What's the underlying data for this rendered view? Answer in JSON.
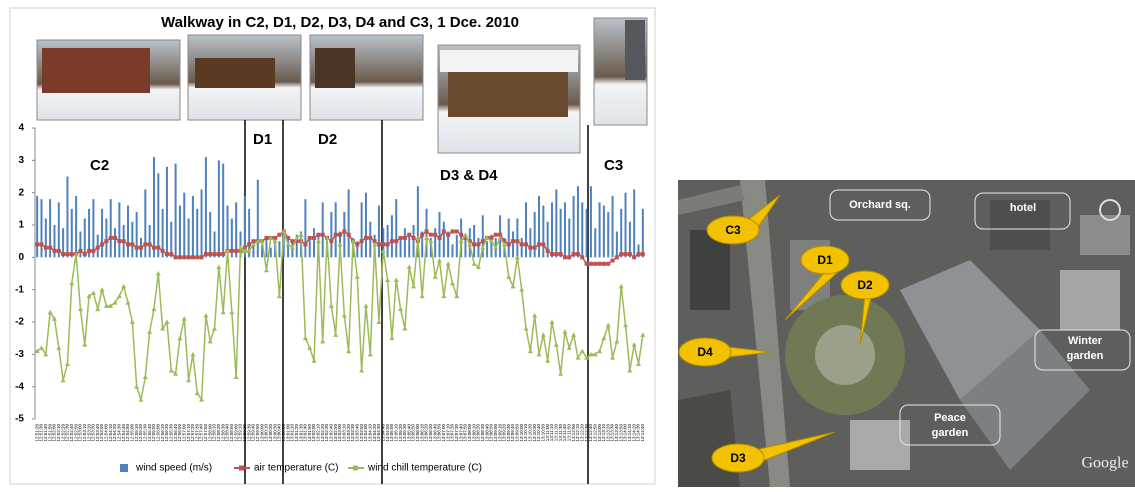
{
  "chart_data": {
    "type": "combo",
    "title": "Walkway in C2, D1, D2, D3, D4 and C3, 1 Dce. 2010",
    "annotations": [
      "C2",
      "D1",
      "D2",
      "D3 & D4",
      "C3"
    ],
    "categories": [
      "12:51:20",
      "12:51:30",
      "12:51:40",
      "12:51:50",
      "12:52:00",
      "12:52:10",
      "12:52:20",
      "12:52:30",
      "12:52:40",
      "12:52:50",
      "12:53:00",
      "12:53:10",
      "12:53:20",
      "12:53:30",
      "12:53:40",
      "12:53:50",
      "12:54:00",
      "12:54:10",
      "12:54:20",
      "12:54:30",
      "12:54:40",
      "12:54:50",
      "12:55:00",
      "12:55:10",
      "12:55:20",
      "12:55:30",
      "12:55:40",
      "12:55:50",
      "12:56:00",
      "12:56:10",
      "12:56:20",
      "12:56:30",
      "12:56:40",
      "12:56:50",
      "12:57:00",
      "12:57:10",
      "12:57:20",
      "12:57:30",
      "12:57:40",
      "12:57:50",
      "12:58:00",
      "12:58:10",
      "12:58:20",
      "12:58:30",
      "12:58:40",
      "12:58:50",
      "12:59:00",
      "12:59:10",
      "12:59:20",
      "12:59:30",
      "12:59:40",
      "12:59:50",
      "13:00:00",
      "13:00:10",
      "13:00:20",
      "13:00:30",
      "13:00:40",
      "13:00:50",
      "13:01:00",
      "13:01:10",
      "13:01:20",
      "13:01:30",
      "13:01:40",
      "13:01:50",
      "13:02:00",
      "13:02:10",
      "13:02:20",
      "13:02:30",
      "13:02:40",
      "13:02:50",
      "13:03:00",
      "13:03:10",
      "13:03:20",
      "13:03:30",
      "13:03:40",
      "13:03:50",
      "13:04:00",
      "13:04:10",
      "13:04:20",
      "13:04:30",
      "13:04:40",
      "13:04:50",
      "13:05:00",
      "13:05:10",
      "13:05:20",
      "13:05:30",
      "13:05:40",
      "13:05:50",
      "13:06:00",
      "13:06:10",
      "13:06:20",
      "13:06:30",
      "13:06:40",
      "13:06:50",
      "13:07:00",
      "13:07:10",
      "13:07:20",
      "13:07:30",
      "13:07:40",
      "13:07:50",
      "13:08:00",
      "13:08:10",
      "13:08:20",
      "13:08:30",
      "13:08:40",
      "13:08:50",
      "13:09:00",
      "13:09:10",
      "13:09:20",
      "13:09:30",
      "13:09:40",
      "13:09:50",
      "13:10:00",
      "13:10:10",
      "13:10:20",
      "13:10:30",
      "13:10:40",
      "13:10:50",
      "13:11:00",
      "13:11:10",
      "13:11:20",
      "13:11:30",
      "13:11:40",
      "13:11:50",
      "13:12:00",
      "13:12:10",
      "13:12:20",
      "13:12:30",
      "13:12:40",
      "13:12:50",
      "13:13:00",
      "13:13:10",
      "13:13:20",
      "13:13:30",
      "13:13:40",
      "13:13:50",
      "13:14:00",
      "13:14:10",
      "13:14:20",
      "13:14:30",
      "13:14:40"
    ],
    "series": [
      {
        "name": "wind speed (m/s)",
        "type": "bar",
        "color": "#4f81bd",
        "values": [
          1.9,
          1.8,
          1.2,
          1.8,
          1.0,
          1.7,
          0.9,
          2.5,
          1.5,
          1.9,
          0.8,
          1.2,
          1.5,
          1.8,
          0.7,
          1.5,
          1.2,
          1.8,
          0.9,
          1.7,
          1.0,
          1.6,
          1.1,
          1.4,
          0.6,
          2.1,
          1.0,
          3.1,
          2.6,
          1.5,
          2.8,
          1.1,
          2.9,
          1.6,
          2.0,
          1.2,
          1.9,
          1.5,
          2.1,
          3.1,
          1.4,
          0.8,
          3.0,
          2.9,
          1.6,
          1.2,
          1.7,
          0.8,
          1.9,
          1.5,
          0.5,
          2.4,
          0.4,
          0.6,
          0.3,
          0.6,
          0.5,
          0.7,
          0.6,
          0.5,
          0.7,
          0.8,
          1.8,
          0.6,
          0.9,
          0.7,
          1.7,
          0.5,
          1.4,
          1.7,
          0.8,
          1.4,
          2.1,
          0.6,
          0.5,
          1.7,
          2.0,
          1.1,
          0.7,
          1.6,
          0.9,
          1.0,
          1.3,
          1.8,
          0.6,
          0.9,
          0.7,
          1.0,
          2.2,
          0.8,
          1.5,
          0.6,
          0.9,
          1.4,
          1.1,
          0.8,
          0.4,
          0.7,
          1.2,
          0.6,
          0.9,
          1.0,
          0.6,
          1.3,
          0.5,
          0.7,
          0.6,
          1.3,
          0.6,
          1.2,
          0.8,
          1.2,
          0.6,
          1.7,
          0.9,
          1.4,
          1.9,
          1.6,
          1.1,
          1.7,
          2.1,
          1.5,
          1.7,
          1.2,
          1.9,
          2.2,
          1.7,
          1.5,
          2.2,
          0.9,
          1.7,
          1.6,
          1.4,
          1.9,
          0.8,
          1.5,
          2.0,
          1.1,
          2.1,
          0.4,
          1.5
        ]
      },
      {
        "name": "air temperature (C)",
        "type": "line",
        "marker": "square",
        "color": "#c0504d",
        "values": [
          0.4,
          0.4,
          0.3,
          0.3,
          0.2,
          0.2,
          0.1,
          0.1,
          0.1,
          0.1,
          0.2,
          0.1,
          0.2,
          0.2,
          0.3,
          0.4,
          0.5,
          0.6,
          0.6,
          0.5,
          0.5,
          0.4,
          0.4,
          0.3,
          0.3,
          0.4,
          0.4,
          0.3,
          0.3,
          0.2,
          0.1,
          0.1,
          0.0,
          0.0,
          0.0,
          0.0,
          0.0,
          0.0,
          0.0,
          0.1,
          0.1,
          0.1,
          0.1,
          0.1,
          0.2,
          0.2,
          0.2,
          0.2,
          0.3,
          0.4,
          0.5,
          0.5,
          0.5,
          0.6,
          0.6,
          0.6,
          0.7,
          0.8,
          0.6,
          0.5,
          0.5,
          0.5,
          0.4,
          0.6,
          0.6,
          0.7,
          0.7,
          0.6,
          0.5,
          0.7,
          0.7,
          0.8,
          0.7,
          0.5,
          0.4,
          0.5,
          0.6,
          0.6,
          0.5,
          0.4,
          0.4,
          0.4,
          0.5,
          0.5,
          0.6,
          0.6,
          0.7,
          0.6,
          0.5,
          0.7,
          0.8,
          0.7,
          0.7,
          0.6,
          0.8,
          0.7,
          0.8,
          0.8,
          0.7,
          0.6,
          0.5,
          0.4,
          0.4,
          0.5,
          0.6,
          0.6,
          0.7,
          0.7,
          0.5,
          0.4,
          0.5,
          0.5,
          0.4,
          0.4,
          0.3,
          0.3,
          0.4,
          0.4,
          0.2,
          0.1,
          0.1,
          0.1,
          0.0,
          0.0,
          0.1,
          0.1,
          0.0,
          -0.2,
          -0.2,
          -0.2,
          -0.2,
          -0.2,
          -0.2,
          -0.1,
          0.0,
          0.1,
          0.1,
          0.1,
          0.0,
          0.1,
          0.1
        ]
      },
      {
        "name": "wind chill temperature (C)",
        "type": "line",
        "marker": "triangle",
        "color": "#9bbb59",
        "values": [
          -2.9,
          -2.8,
          -3.0,
          -1.7,
          -1.9,
          -2.8,
          -3.8,
          -3.3,
          -0.8,
          0.1,
          -1.6,
          -2.7,
          -1.2,
          -1.1,
          -1.6,
          -1.0,
          -1.5,
          -1.5,
          -1.4,
          -1.2,
          -0.9,
          -1.4,
          -2.0,
          -4.0,
          -4.4,
          -3.7,
          -2.3,
          -1.6,
          -0.5,
          -2.2,
          -2.0,
          -3.5,
          -3.6,
          -2.5,
          -1.9,
          -3.8,
          -3.0,
          -4.2,
          -4.4,
          -1.8,
          -2.6,
          -2.2,
          -0.3,
          -1.7,
          0.2,
          -1.7,
          -3.7,
          0.3,
          0.2,
          0.2,
          0.4,
          0.5,
          0.5,
          -0.4,
          0.6,
          0.5,
          -1.2,
          0.8,
          0.4,
          0.3,
          0.6,
          0.7,
          -2.5,
          -2.8,
          -3.2,
          0.5,
          -2.6,
          0.6,
          -1.5,
          -2.4,
          0.4,
          -1.8,
          -2.9,
          0.5,
          -0.6,
          -3.5,
          -1.5,
          -3.0,
          0.4,
          -2.0,
          0.2,
          -0.7,
          -2.5,
          -0.7,
          -1.6,
          -2.2,
          -0.3,
          -0.9,
          0.6,
          -1.2,
          0.6,
          0.5,
          -0.6,
          -0.1,
          -1.2,
          -0.2,
          -0.8,
          -1.2,
          0.5,
          0.7,
          0.4,
          -0.2,
          -0.3,
          0.3,
          0.6,
          0.5,
          0.3,
          0.6,
          0.4,
          -0.6,
          -0.9,
          0.0,
          -1.0,
          -2.2,
          -2.9,
          -1.8,
          -3.0,
          -2.4,
          -3.2,
          -2.0,
          -2.7,
          -3.6,
          -2.3,
          -2.8,
          -2.4,
          -3.1,
          -2.9,
          -3.1,
          -3.0,
          -3.0,
          -2.9,
          -2.5,
          -2.1,
          -3.1,
          -2.6,
          -0.9,
          -2.1,
          -3.5,
          -2.7,
          -3.3,
          -2.4
        ]
      }
    ],
    "ylim": [
      -5,
      4
    ],
    "yticks": [
      -5,
      -4,
      -3,
      -2,
      -1,
      0,
      1,
      2,
      3,
      4
    ],
    "grid": false,
    "legend": "bottom"
  },
  "map": {
    "callouts": [
      "C3",
      "D1",
      "D2",
      "D4",
      "D3"
    ],
    "labels": {
      "orchard": "Orchard sq.",
      "hotel": "hotel",
      "winter_garden": [
        "Winter",
        "garden"
      ],
      "peace_garden": [
        "Peace",
        "garden"
      ]
    },
    "brand": "Google"
  }
}
